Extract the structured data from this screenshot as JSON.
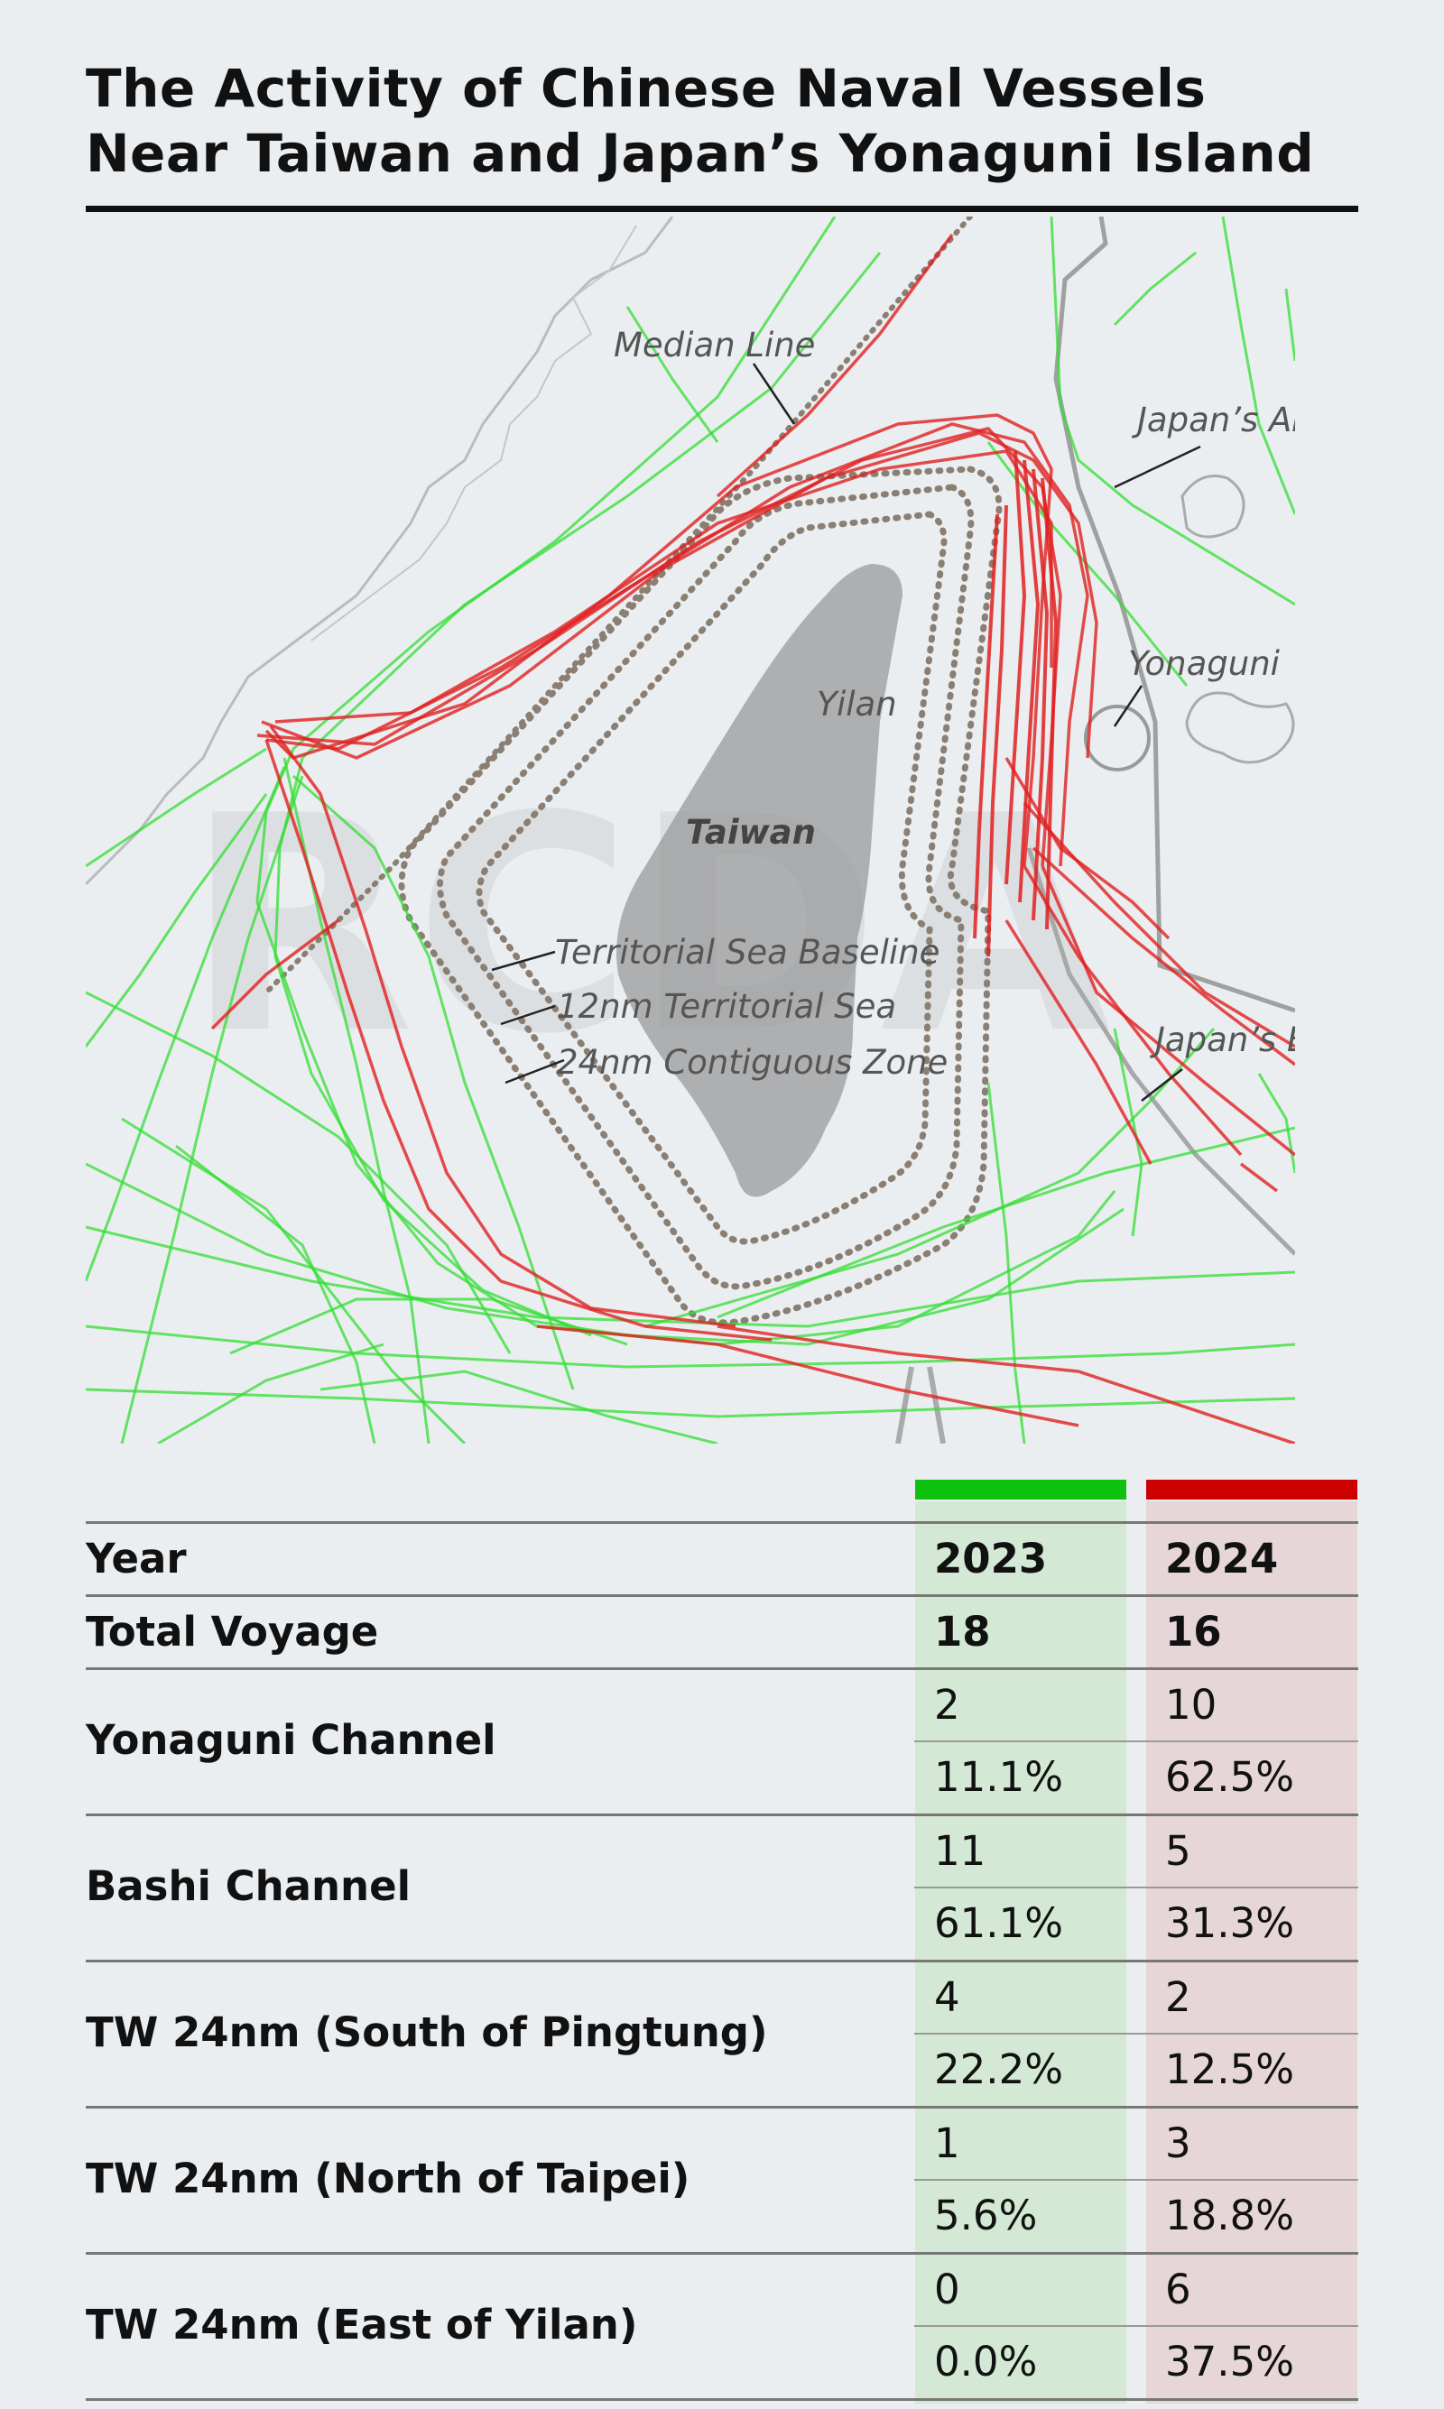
{
  "title": {
    "line1": "The Activity of Chinese Naval Vessels",
    "line2": "Near Taiwan and Japan’s Yonaguni Island"
  },
  "map": {
    "watermark": "RCDA",
    "labels": {
      "median_line": "Median Line",
      "japan_adiz": "Japan’s ADIZ",
      "yonaguni": "Yonaguni",
      "yilan": "Yilan",
      "taiwan": "Taiwan",
      "baseline": "Territorial Sea Baseline",
      "territorial": "12nm Territorial Sea",
      "contiguous": "24nm Contiguous Zone",
      "japan_eez": "Japan’s EEZ"
    },
    "colors": {
      "track_2023": "#33dd33",
      "track_2024": "#e02020",
      "land": "#9a9a9a",
      "zone_dots": "#8a7f72",
      "boundary": "#999999"
    }
  },
  "table": {
    "legend_colors": {
      "y2023": "#0fc20f",
      "y2024": "#cc0000"
    },
    "header": {
      "label": "Year",
      "y2023": "2023",
      "y2024": "2024"
    },
    "total": {
      "label": "Total Voyage",
      "y2023": "18",
      "y2024": "16"
    },
    "rows": [
      {
        "label": "Yonaguni Channel",
        "count2023": "2",
        "count2024": "10",
        "pct2023": "11.1%",
        "pct2024": "62.5%"
      },
      {
        "label": "Bashi Channel",
        "count2023": "11",
        "count2024": "5",
        "pct2023": "61.1%",
        "pct2024": "31.3%"
      },
      {
        "label": "TW 24nm (South of Pingtung)",
        "count2023": "4",
        "count2024": "2",
        "pct2023": "22.2%",
        "pct2024": "12.5%"
      },
      {
        "label": "TW 24nm (North of Taipei)",
        "count2023": "1",
        "count2024": "3",
        "pct2023": "5.6%",
        "pct2024": "18.8%"
      },
      {
        "label": "TW 24nm (East of Yilan)",
        "count2023": "0",
        "count2024": "6",
        "pct2023": "0.0%",
        "pct2024": "37.5%"
      }
    ]
  }
}
